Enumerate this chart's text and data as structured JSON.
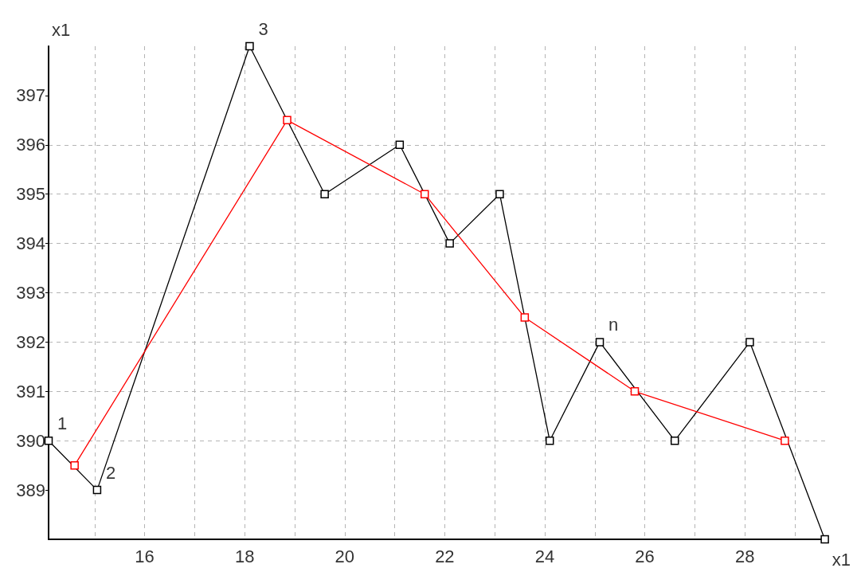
{
  "chart_data": {
    "type": "line",
    "xlabel": "x1",
    "ylabel": "x1",
    "xlim": [
      14.08,
      29.65
    ],
    "ylim": [
      388,
      398
    ],
    "xticks": [
      {
        "value": 15,
        "label": null
      },
      16,
      {
        "value": 17,
        "label": null
      },
      18,
      {
        "value": 19,
        "label": null
      },
      20,
      {
        "value": 21,
        "label": null
      },
      22,
      {
        "value": 23,
        "label": null
      },
      24,
      {
        "value": 25,
        "label": null
      },
      26,
      {
        "value": 27,
        "label": null
      },
      28,
      {
        "value": 29,
        "label": null
      }
    ],
    "yticks": [
      389,
      390,
      391,
      392,
      393,
      394,
      395,
      396,
      397
    ],
    "grid": true,
    "marker": "square",
    "line_style": "solid",
    "series": [
      {
        "color": "#000000",
        "x": [
          14.08,
          15.05,
          18.1,
          19.6,
          21.1,
          22.1,
          23.1,
          24.1,
          25.1,
          26.6,
          28.1,
          29.6
        ],
        "values": [
          390,
          389,
          398,
          395,
          396,
          394,
          395,
          390,
          392,
          390,
          392,
          388
        ]
      },
      {
        "color": "#ff0000",
        "x": [
          14.6,
          18.85,
          21.6,
          23.6,
          25.8,
          28.8
        ],
        "values": [
          389.5,
          396.5,
          395,
          392.5,
          391,
          390
        ]
      }
    ],
    "annotations": [
      {
        "text": "1",
        "x": 14.08,
        "y": 390
      },
      {
        "text": "2",
        "x": 15.05,
        "y": 389
      },
      {
        "text": "3",
        "x": 18.1,
        "y": 398
      },
      {
        "text": "n",
        "x": 25.1,
        "y": 392
      }
    ]
  }
}
